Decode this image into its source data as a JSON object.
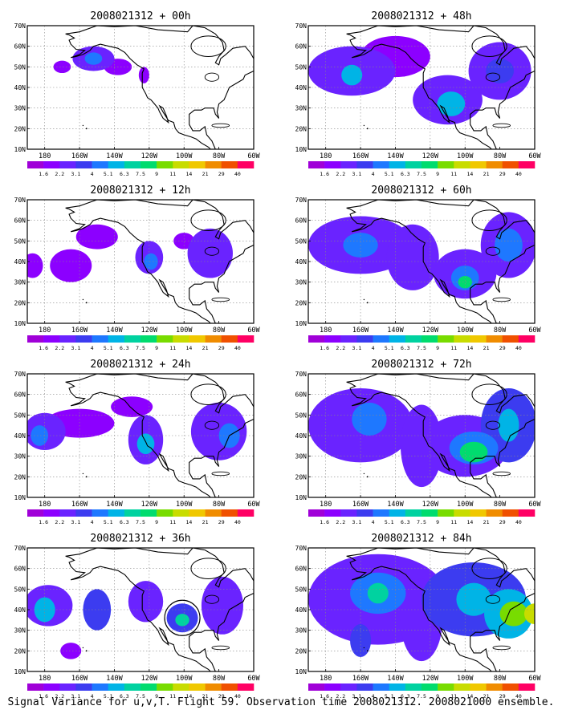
{
  "caption": "Signal Variance for u,v,T. Flight 59. Observation time 2008021312. 2008021000 ensemble.",
  "colorbar": {
    "labels": [
      "1.6",
      "2.2",
      "3.1",
      "4",
      "5.1",
      "6.3",
      "7.5",
      "9",
      "11",
      "14",
      "21",
      "29",
      "40"
    ],
    "colors": [
      "#a000d8",
      "#8c00ff",
      "#6a23ff",
      "#3c3cf0",
      "#1e78ff",
      "#00b4e6",
      "#00d2a0",
      "#00dc6e",
      "#78dc00",
      "#c8dc00",
      "#f0c800",
      "#f08c00",
      "#f05000",
      "#ff0064"
    ]
  },
  "map": {
    "xticks": [
      "180",
      "160W",
      "140W",
      "120W",
      "100W",
      "80W",
      "60W"
    ],
    "yticks": [
      "10N",
      "20N",
      "30N",
      "40N",
      "50N",
      "60N",
      "70N"
    ],
    "lon_range": [
      -190,
      -60
    ],
    "lat_range": [
      10,
      70
    ],
    "grid": true
  },
  "chart_data": [
    {
      "type": "heatmap",
      "title": "2008021312 + 00h",
      "blobs": [
        {
          "lon": -152,
          "lat": 54,
          "rlon": 12,
          "rlat": 6,
          "level": 2
        },
        {
          "lon": -152,
          "lat": 54,
          "rlon": 5,
          "rlat": 3,
          "level": 4
        },
        {
          "lon": -138,
          "lat": 50,
          "rlon": 8,
          "rlat": 4,
          "level": 1
        },
        {
          "lon": -123,
          "lat": 46,
          "rlon": 3,
          "rlat": 4,
          "level": 1
        },
        {
          "lon": -170,
          "lat": 50,
          "rlon": 5,
          "rlat": 3,
          "level": 1
        }
      ]
    },
    {
      "type": "heatmap",
      "title": "2008021312 + 12h",
      "blobs": [
        {
          "lon": -165,
          "lat": 38,
          "rlon": 12,
          "rlat": 8,
          "level": 1
        },
        {
          "lon": -150,
          "lat": 52,
          "rlon": 12,
          "rlat": 6,
          "level": 1
        },
        {
          "lon": -120,
          "lat": 42,
          "rlon": 8,
          "rlat": 8,
          "level": 2
        },
        {
          "lon": -119,
          "lat": 40,
          "rlon": 4,
          "rlat": 4,
          "level": 4
        },
        {
          "lon": -85,
          "lat": 44,
          "rlon": 13,
          "rlat": 12,
          "level": 2
        },
        {
          "lon": -100,
          "lat": 50,
          "rlon": 6,
          "rlat": 4,
          "level": 1
        },
        {
          "lon": -187,
          "lat": 38,
          "rlon": 6,
          "rlat": 6,
          "level": 1
        }
      ]
    },
    {
      "type": "heatmap",
      "title": "2008021312 + 24h",
      "blobs": [
        {
          "lon": -180,
          "lat": 42,
          "rlon": 12,
          "rlat": 9,
          "level": 2
        },
        {
          "lon": -183,
          "lat": 40,
          "rlon": 5,
          "rlat": 5,
          "level": 4
        },
        {
          "lon": -160,
          "lat": 46,
          "rlon": 20,
          "rlat": 7,
          "level": 1
        },
        {
          "lon": -122,
          "lat": 38,
          "rlon": 10,
          "rlat": 12,
          "level": 2
        },
        {
          "lon": -122,
          "lat": 36,
          "rlon": 5,
          "rlat": 5,
          "level": 5
        },
        {
          "lon": -80,
          "lat": 42,
          "rlon": 16,
          "rlat": 14,
          "level": 2
        },
        {
          "lon": -74,
          "lat": 40,
          "rlon": 6,
          "rlat": 6,
          "level": 4
        },
        {
          "lon": -130,
          "lat": 54,
          "rlon": 12,
          "rlat": 5,
          "level": 1
        }
      ]
    },
    {
      "type": "heatmap",
      "title": "2008021312 + 36h",
      "blobs": [
        {
          "lon": -178,
          "lat": 42,
          "rlon": 14,
          "rlat": 10,
          "level": 2
        },
        {
          "lon": -180,
          "lat": 40,
          "rlon": 6,
          "rlat": 6,
          "level": 5
        },
        {
          "lon": -150,
          "lat": 40,
          "rlon": 8,
          "rlat": 10,
          "level": 3
        },
        {
          "lon": -122,
          "lat": 44,
          "rlon": 10,
          "rlat": 10,
          "level": 2
        },
        {
          "lon": -101,
          "lat": 36,
          "rlon": 9,
          "rlat": 7,
          "level": 3
        },
        {
          "lon": -101,
          "lat": 35,
          "rlon": 4,
          "rlat": 3,
          "level": 6
        },
        {
          "lon": -78,
          "lat": 42,
          "rlon": 12,
          "rlat": 14,
          "level": 2
        },
        {
          "lon": -165,
          "lat": 20,
          "rlon": 6,
          "rlat": 4,
          "level": 1
        }
      ]
    },
    {
      "type": "heatmap",
      "title": "2008021312 + 48h",
      "blobs": [
        {
          "lon": -165,
          "lat": 48,
          "rlon": 25,
          "rlat": 12,
          "level": 2
        },
        {
          "lon": -165,
          "lat": 46,
          "rlon": 6,
          "rlat": 5,
          "level": 5
        },
        {
          "lon": -140,
          "lat": 55,
          "rlon": 20,
          "rlat": 10,
          "level": 1
        },
        {
          "lon": -110,
          "lat": 34,
          "rlon": 20,
          "rlat": 12,
          "level": 2
        },
        {
          "lon": -108,
          "lat": 32,
          "rlon": 8,
          "rlat": 6,
          "level": 5
        },
        {
          "lon": -80,
          "lat": 48,
          "rlon": 18,
          "rlat": 14,
          "level": 2
        },
        {
          "lon": -80,
          "lat": 48,
          "rlon": 8,
          "rlat": 6,
          "level": 3
        }
      ]
    },
    {
      "type": "heatmap",
      "title": "2008021312 + 60h",
      "blobs": [
        {
          "lon": -160,
          "lat": 48,
          "rlon": 30,
          "rlat": 14,
          "level": 2
        },
        {
          "lon": -160,
          "lat": 48,
          "rlon": 10,
          "rlat": 6,
          "level": 4
        },
        {
          "lon": -130,
          "lat": 42,
          "rlon": 15,
          "rlat": 16,
          "level": 2
        },
        {
          "lon": -100,
          "lat": 34,
          "rlon": 18,
          "rlat": 12,
          "level": 2
        },
        {
          "lon": -100,
          "lat": 32,
          "rlon": 8,
          "rlat": 6,
          "level": 4
        },
        {
          "lon": -100,
          "lat": 30,
          "rlon": 4,
          "rlat": 3,
          "level": 7
        },
        {
          "lon": -75,
          "lat": 48,
          "rlon": 16,
          "rlat": 16,
          "level": 2
        },
        {
          "lon": -75,
          "lat": 48,
          "rlon": 8,
          "rlat": 8,
          "level": 4
        }
      ]
    },
    {
      "type": "heatmap",
      "title": "2008021312 + 72h",
      "blobs": [
        {
          "lon": -160,
          "lat": 45,
          "rlon": 30,
          "rlat": 18,
          "level": 2
        },
        {
          "lon": -155,
          "lat": 48,
          "rlon": 10,
          "rlat": 8,
          "level": 4
        },
        {
          "lon": -125,
          "lat": 35,
          "rlon": 12,
          "rlat": 20,
          "level": 2
        },
        {
          "lon": -100,
          "lat": 35,
          "rlon": 25,
          "rlat": 15,
          "level": 2
        },
        {
          "lon": -95,
          "lat": 34,
          "rlon": 14,
          "rlat": 8,
          "level": 4
        },
        {
          "lon": -95,
          "lat": 32,
          "rlon": 8,
          "rlat": 5,
          "level": 7
        },
        {
          "lon": -75,
          "lat": 45,
          "rlon": 16,
          "rlat": 18,
          "level": 3
        },
        {
          "lon": -75,
          "lat": 45,
          "rlon": 6,
          "rlat": 8,
          "level": 5
        }
      ]
    },
    {
      "type": "heatmap",
      "title": "2008021312 + 84h",
      "blobs": [
        {
          "lon": -150,
          "lat": 45,
          "rlon": 40,
          "rlat": 22,
          "level": 2
        },
        {
          "lon": -150,
          "lat": 48,
          "rlon": 16,
          "rlat": 10,
          "level": 4
        },
        {
          "lon": -150,
          "lat": 48,
          "rlon": 6,
          "rlat": 5,
          "level": 6
        },
        {
          "lon": -125,
          "lat": 35,
          "rlon": 12,
          "rlat": 20,
          "level": 2
        },
        {
          "lon": -160,
          "lat": 25,
          "rlon": 6,
          "rlat": 8,
          "level": 3
        },
        {
          "lon": -95,
          "lat": 45,
          "rlon": 30,
          "rlat": 18,
          "level": 3
        },
        {
          "lon": -95,
          "lat": 45,
          "rlon": 10,
          "rlat": 8,
          "level": 5
        },
        {
          "lon": -75,
          "lat": 38,
          "rlon": 14,
          "rlat": 12,
          "level": 5
        },
        {
          "lon": -72,
          "lat": 38,
          "rlon": 8,
          "rlat": 6,
          "level": 8
        },
        {
          "lon": -60,
          "lat": 38,
          "rlon": 6,
          "rlat": 5,
          "level": 9
        }
      ]
    }
  ]
}
